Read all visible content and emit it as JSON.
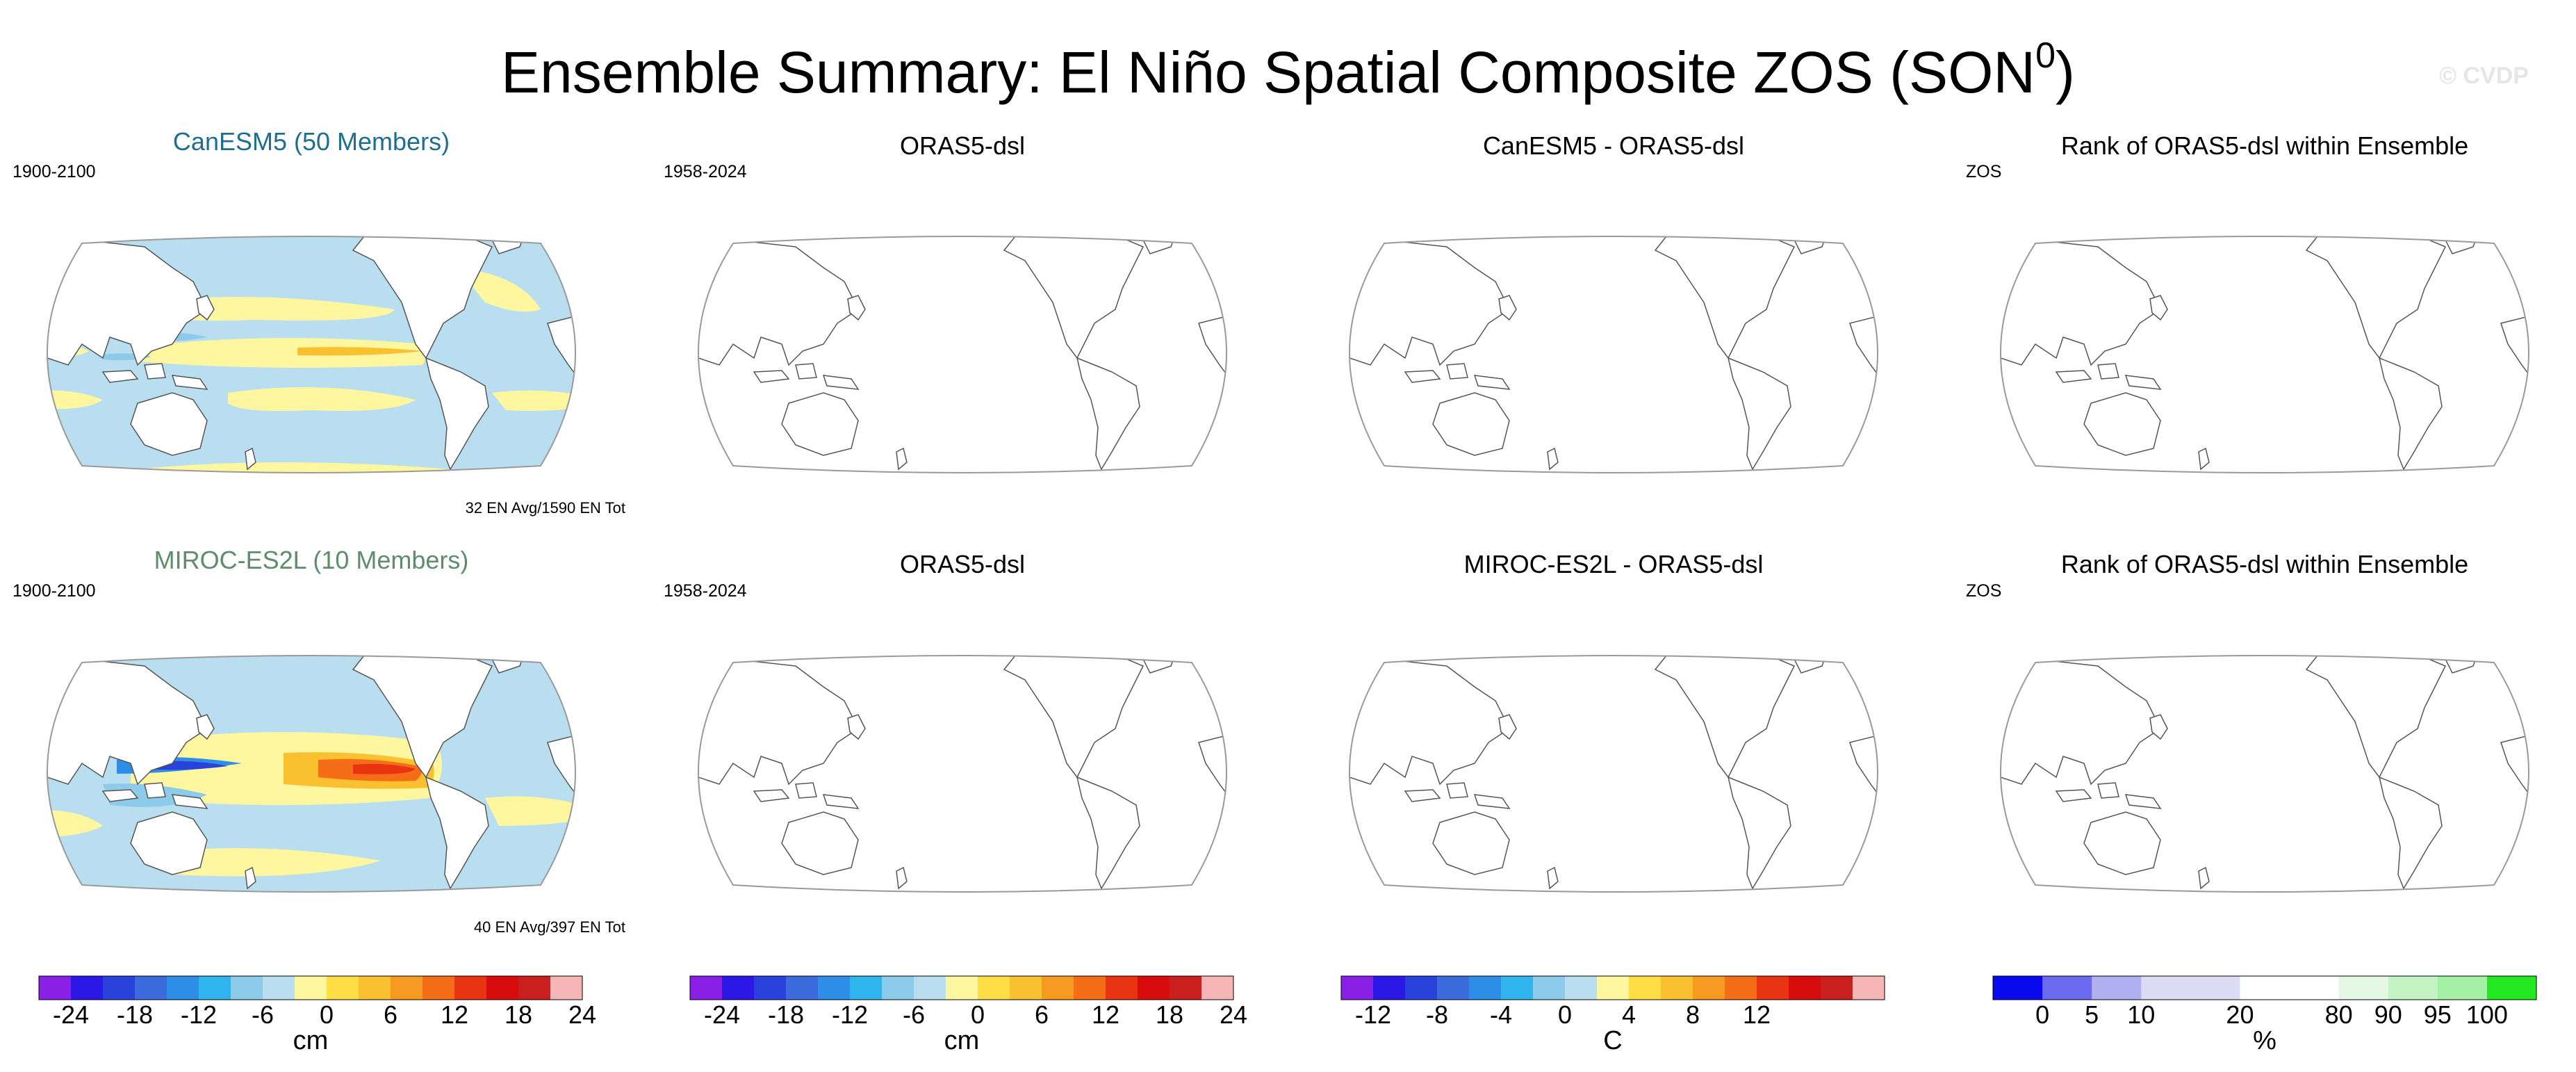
{
  "title": {
    "main": "Ensemble Summary: El Niño Spatial Composite ZOS (SON",
    "sup": "0",
    "close": ")"
  },
  "watermark": "© CVDP",
  "rows": [
    {
      "panels": [
        {
          "title": "CanESM5 (50 Members)",
          "label": "1900-2100",
          "footer": "32 EN Avg/1590 EN Tot"
        },
        {
          "title": "ORAS5-dsl",
          "label": "1958-2024",
          "footer": ""
        },
        {
          "title": "CanESM5 - ORAS5-dsl",
          "label": "",
          "footer": ""
        },
        {
          "title": "Rank of ORAS5-dsl within Ensemble",
          "label": "ZOS",
          "footer": ""
        }
      ]
    },
    {
      "panels": [
        {
          "title": "MIROC-ES2L (10 Members)",
          "label": "1900-2100",
          "footer": "40 EN Avg/397 EN Tot"
        },
        {
          "title": "ORAS5-dsl",
          "label": "1958-2024",
          "footer": ""
        },
        {
          "title": "MIROC-ES2L - ORAS5-dsl",
          "label": "",
          "footer": ""
        },
        {
          "title": "Rank of ORAS5-dsl within Ensemble",
          "label": "ZOS",
          "footer": ""
        }
      ]
    }
  ],
  "colorbars": [
    {
      "unit": "cm",
      "colors": [
        "#8a1fe6",
        "#2b18e6",
        "#2a42dc",
        "#3b6bdd",
        "#2d8ee8",
        "#30b4ee",
        "#8ccbea",
        "#b9def0",
        "#fff7a0",
        "#ffdd44",
        "#f9c12f",
        "#f79a22",
        "#f56d16",
        "#e83410",
        "#d80c0c",
        "#c91f1f",
        "#f7b6b6"
      ],
      "ticks": [
        "-24",
        "-18",
        "-12",
        "-6",
        "0",
        "6",
        "12",
        "18",
        "24"
      ]
    },
    {
      "unit": "cm",
      "colors": [
        "#8a1fe6",
        "#2b18e6",
        "#2a42dc",
        "#3b6bdd",
        "#2d8ee8",
        "#30b4ee",
        "#8ccbea",
        "#b9def0",
        "#fff7a0",
        "#ffdd44",
        "#f9c12f",
        "#f79a22",
        "#f56d16",
        "#e83410",
        "#d80c0c",
        "#c91f1f",
        "#f7b6b6"
      ],
      "ticks": [
        "-24",
        "-18",
        "-12",
        "-6",
        "0",
        "6",
        "12",
        "18",
        "24"
      ]
    },
    {
      "unit": "C",
      "colors": [
        "#8a1fe6",
        "#2b18e6",
        "#2a42dc",
        "#3b6bdd",
        "#2d8ee8",
        "#30b4ee",
        "#8ccbea",
        "#b9def0",
        "#fff7a0",
        "#ffdd44",
        "#f9c12f",
        "#f79a22",
        "#f56d16",
        "#e83410",
        "#d80c0c",
        "#c91f1f",
        "#f7b6b6"
      ],
      "ticks": [
        "-12",
        "-8",
        "-4",
        "0",
        "4",
        "8",
        "12"
      ]
    },
    {
      "unit": "%",
      "colors": [
        "#0a0aee",
        "#6a6af0",
        "#b0b0f2",
        "#dcdcf6",
        "#dcdcf6",
        "#ffffff",
        "#ffffff",
        "#e4f8e4",
        "#c4f4c4",
        "#a4f0a4",
        "#22e822"
      ],
      "ticks": [
        "0",
        "5",
        "10",
        "20",
        "80",
        "90",
        "95",
        "100"
      ]
    }
  ],
  "map_colors": {
    "ocean_neutral": "#b9def0",
    "ocean_warm": "#fff7a0",
    "warm": "#f9c12f",
    "hot": "#f56d16",
    "hotter": "#e83410",
    "cool": "#8ccbea",
    "cold": "#2d8ee8",
    "colder": "#2a42dc",
    "land": "#ffffff",
    "coast": "#555555",
    "frame": "#9a9a9a"
  }
}
